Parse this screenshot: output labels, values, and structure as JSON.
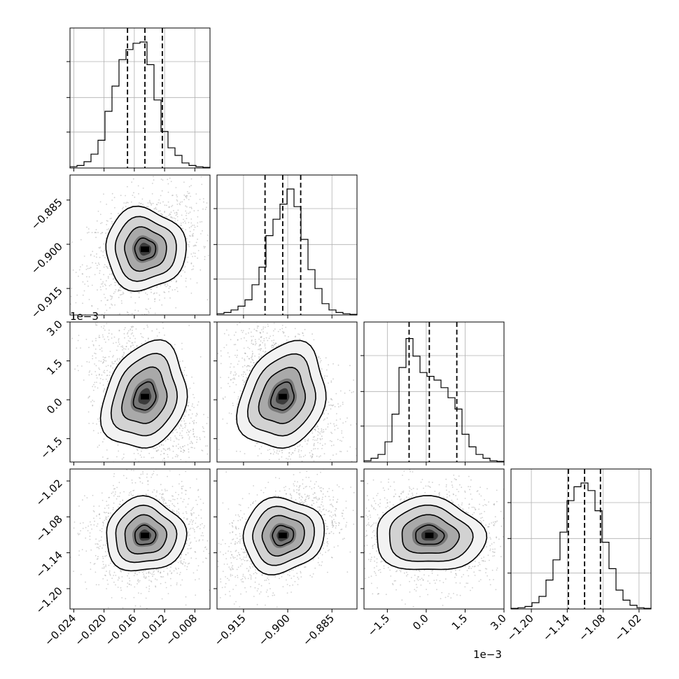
{
  "chart_data": {
    "type": "corner",
    "parameters": [
      {
        "ticks": [
          -0.024,
          -0.02,
          -0.016,
          -0.012,
          -0.008
        ],
        "tick_labels": [
          "−0.024",
          "−0.020",
          "−0.016",
          "−0.012",
          "−0.008"
        ],
        "range": [
          -0.0245,
          -0.006
        ],
        "quantiles": [
          -0.0169,
          -0.0146,
          -0.0123
        ],
        "hist": [
          0.01,
          0.02,
          0.05,
          0.11,
          0.22,
          0.45,
          0.65,
          0.86,
          0.94,
          0.99,
          1.0,
          0.82,
          0.54,
          0.29,
          0.16,
          0.1,
          0.04,
          0.02,
          0.01,
          0.005
        ]
      },
      {
        "ticks": [
          -0.915,
          -0.9,
          -0.885
        ],
        "tick_labels": [
          "−0.915",
          "−0.900",
          "−0.885"
        ],
        "range": [
          -0.924,
          -0.8765
        ],
        "quantiles": [
          -0.9077,
          -0.9017,
          -0.8956
        ],
        "hist": [
          0.01,
          0.02,
          0.04,
          0.07,
          0.12,
          0.24,
          0.38,
          0.63,
          0.76,
          0.88,
          1.0,
          0.86,
          0.6,
          0.36,
          0.21,
          0.09,
          0.04,
          0.02,
          0.01,
          0.005
        ]
      },
      {
        "ticks": [
          -1.5,
          0.0,
          1.5,
          3.0
        ],
        "tick_labels": [
          "−1.5",
          "0.0",
          "1.5",
          "3.0"
        ],
        "range": [
          -2.4,
          3.0
        ],
        "quantiles": [
          -0.66,
          0.12,
          1.18
        ],
        "offset": "1e−3",
        "hist": [
          0.01,
          0.03,
          0.06,
          0.16,
          0.38,
          0.75,
          0.98,
          0.84,
          0.71,
          0.68,
          0.65,
          0.59,
          0.51,
          0.42,
          0.22,
          0.12,
          0.06,
          0.03,
          0.01,
          0.005
        ]
      },
      {
        "ticks": [
          -1.2,
          -1.14,
          -1.08,
          -1.02
        ],
        "tick_labels": [
          "−1.20",
          "−1.14",
          "−1.08",
          "−1.02"
        ],
        "range": [
          -1.234,
          -1.0
        ],
        "quantiles": [
          -1.138,
          -1.111,
          -1.0845
        ],
        "hist": [
          0.005,
          0.01,
          0.02,
          0.05,
          0.1,
          0.23,
          0.39,
          0.61,
          0.86,
          0.97,
          1.0,
          0.94,
          0.78,
          0.53,
          0.32,
          0.15,
          0.07,
          0.03,
          0.01,
          0.005
        ]
      }
    ],
    "correlations": {
      "1,0": 0.3,
      "2,0": -0.4,
      "2,1": -0.45,
      "3,0": 0.05,
      "3,1": 0.4,
      "3,2": -0.05
    },
    "grid": true
  }
}
